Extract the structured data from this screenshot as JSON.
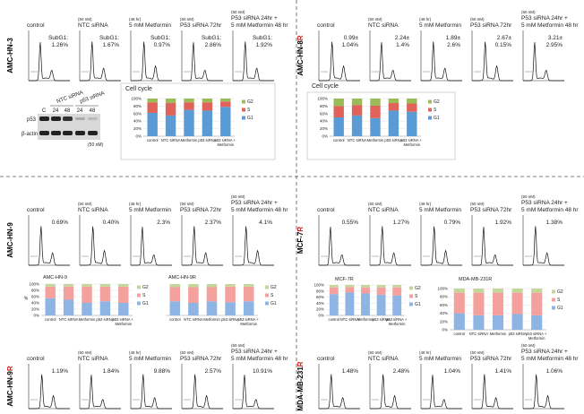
{
  "rows": [
    {
      "side_label": [
        {
          "text": "AMC-HN-3",
          "color": "#000000"
        }
      ],
      "headers": [
        {
          "lines": [
            "control"
          ]
        },
        {
          "note": "(50 nM)",
          "lines": [
            "NTC siRNA"
          ]
        },
        {
          "note": "(48 hr)",
          "lines": [
            "5 mM Metformin"
          ]
        },
        {
          "note": "(50 nM)",
          "lines": [
            "P53 siRNA 72hr"
          ]
        },
        {
          "note": "(50 nM)",
          "lines": [
            "P53 siRNA 24hr +",
            "5 mM Metformin 48 hr"
          ]
        }
      ],
      "labels": [
        [
          "SubG1:",
          "1.26%"
        ],
        [
          "SubG1:",
          "1.67%"
        ],
        [
          "SubG1:",
          "0.97%"
        ],
        [
          "SubG1:",
          "2.86%"
        ],
        [
          "SubG1:",
          "1.92%"
        ]
      ]
    },
    {
      "side_label": [
        {
          "text": "AMC-HN-8",
          "color": "#000000"
        },
        {
          "text": "R",
          "color": "#e0201b"
        }
      ],
      "headers": [
        {
          "lines": [
            "control"
          ]
        },
        {
          "note": "(50 nM)",
          "lines": [
            "NTC siRNA"
          ]
        },
        {
          "note": "(48 hr)",
          "lines": [
            "5 mM Metformin"
          ]
        },
        {
          "note": "(50 nM)",
          "lines": [
            "P53 siRNA 72hr"
          ]
        },
        {
          "note": "(50 nM)",
          "lines": [
            "P53 siRNA 24hr +",
            "5 mM Metformin 48 hr"
          ]
        }
      ],
      "labels": [
        [
          "0.99±",
          "1.04%"
        ],
        [
          "2.24±",
          "1.4%"
        ],
        [
          "1.89±",
          "2.6%"
        ],
        [
          "2.67±",
          "0.15%"
        ],
        [
          "3.21±",
          "2.95%"
        ]
      ]
    },
    {
      "side_label": [
        {
          "text": "AMC-HN-9",
          "color": "#000000"
        }
      ],
      "headers": [
        {
          "lines": [
            "control"
          ]
        },
        {
          "note": "(50 nM)",
          "lines": [
            "NTC siRNA"
          ]
        },
        {
          "note": "(48 hr)",
          "lines": [
            "5 mM Metformin"
          ]
        },
        {
          "note": "(50 nM)",
          "lines": [
            "P53 siRNA 72hr"
          ]
        },
        {
          "note": "(50 nM)",
          "lines": [
            "P53 siRNA 24hr +",
            "5 mM Metformin 48 hr"
          ]
        }
      ],
      "labels": [
        [
          "0.69%"
        ],
        [
          "0.40%"
        ],
        [
          "2.3%"
        ],
        [
          "2.37%"
        ],
        [
          "4.1%"
        ]
      ]
    },
    {
      "side_label": [
        {
          "text": "MCF-7",
          "color": "#000000"
        },
        {
          "text": "R",
          "color": "#e0201b"
        }
      ],
      "headers": [
        {
          "lines": [
            "control"
          ]
        },
        {
          "note": "(50 nM)",
          "lines": [
            "NTC siRNA"
          ]
        },
        {
          "note": "(48 hr)",
          "lines": [
            "5 mM Metformin"
          ]
        },
        {
          "note": "(50 nM)",
          "lines": [
            "P53 siRNA 72hr"
          ]
        },
        {
          "note": "(50 nM)",
          "lines": [
            "P53 siRNA 24hr +",
            "5 mM Metformin 48 hr"
          ]
        }
      ],
      "labels": [
        [
          "0.55%"
        ],
        [
          "1.27%"
        ],
        [
          "0.79%"
        ],
        [
          "1.92%"
        ],
        [
          "1.38%"
        ]
      ]
    },
    {
      "side_label": [
        {
          "text": "AMC-HN-9",
          "color": "#000000"
        },
        {
          "text": "R",
          "color": "#e0201b"
        }
      ],
      "headers": [
        {
          "lines": [
            "control"
          ]
        },
        {
          "note": "(50 nM)",
          "lines": [
            "NTC siRNA"
          ]
        },
        {
          "note": "(48 hr)",
          "lines": [
            "5 mM Metformin"
          ]
        },
        {
          "note": "(50 nM)",
          "lines": [
            "P53 siRNA 72hr"
          ]
        },
        {
          "note": "(50 nM)",
          "lines": [
            "P53 siRNA 24hr +",
            "5 mM Metformin 48 hr"
          ]
        }
      ],
      "labels": [
        [
          "1.19%"
        ],
        [
          "1.84%"
        ],
        [
          "9.88%"
        ],
        [
          "2.57%"
        ],
        [
          "10.91%"
        ]
      ]
    },
    {
      "side_label": [
        {
          "text": "MDA-MB-231",
          "color": "#000000"
        },
        {
          "text": "R",
          "color": "#e0201b"
        }
      ],
      "headers": [
        {
          "lines": [
            "control"
          ]
        },
        {
          "note": "(50 nM)",
          "lines": [
            "NTC siRNA"
          ]
        },
        {
          "note": "(48 hr)",
          "lines": [
            "5 mM Metformin"
          ]
        },
        {
          "note": "(50 nM)",
          "lines": [
            "P53 siRNA 72hr"
          ]
        },
        {
          "note": "(50 nM)",
          "lines": [
            "P53 siRNA 24hr +",
            "5 mM Metformin 48 hr"
          ]
        }
      ],
      "labels": [
        [
          "1.48%"
        ],
        [
          "2.48%"
        ],
        [
          "1.04%"
        ],
        [
          "1.41%"
        ],
        [
          "1.06%"
        ]
      ]
    }
  ],
  "western_blot": {
    "groups": [
      "NTC siRNA",
      "p53 siRNA"
    ],
    "lanes": [
      "C",
      "24",
      "48",
      "24",
      "48"
    ],
    "rows": [
      "p53",
      "β-actin"
    ],
    "note": "(50 nM)"
  },
  "chart_data": [
    {
      "type": "bar",
      "stacked": true,
      "title": "Cell cycle",
      "categories": [
        "control",
        "NTC siRNA",
        "Metformin",
        "p53 siRNA",
        "p53 siRNA + Metformin"
      ],
      "series": [
        {
          "name": "G1",
          "color": "#5b9bd5",
          "values": [
            62,
            55,
            70,
            68,
            78
          ]
        },
        {
          "name": "S",
          "color": "#e0625a",
          "values": [
            28,
            33,
            20,
            22,
            14
          ]
        },
        {
          "name": "G2",
          "color": "#9bbb59",
          "values": [
            10,
            12,
            10,
            10,
            8
          ]
        }
      ],
      "ylim": [
        0,
        100
      ],
      "yticks": [
        {
          "value": 0,
          "label": "0%"
        },
        {
          "value": 20,
          "label": "20%"
        },
        {
          "value": 40,
          "label": "40%"
        },
        {
          "value": 60,
          "label": "60%"
        },
        {
          "value": 80,
          "label": "80%"
        },
        {
          "value": 100,
          "label": "100%"
        }
      ],
      "grid": true,
      "legend": "right"
    },
    {
      "type": "bar",
      "stacked": true,
      "title": "Cell cycle",
      "categories": [
        "control",
        "NTC siRNA",
        "Metformin",
        "p53 siRNA",
        "p53 siRNA + Metformin"
      ],
      "series": [
        {
          "name": "G1",
          "color": "#5b9bd5",
          "values": [
            50,
            55,
            48,
            68,
            65
          ]
        },
        {
          "name": "S",
          "color": "#e0625a",
          "values": [
            30,
            28,
            33,
            20,
            22
          ]
        },
        {
          "name": "G2",
          "color": "#9bbb59",
          "values": [
            20,
            17,
            19,
            12,
            13
          ]
        }
      ],
      "ylim": [
        0,
        100
      ],
      "yticks": [
        {
          "value": 0,
          "label": "0%"
        },
        {
          "value": 20,
          "label": "20%"
        },
        {
          "value": 40,
          "label": "40%"
        },
        {
          "value": 60,
          "label": "60%"
        },
        {
          "value": 80,
          "label": "80%"
        },
        {
          "value": 100,
          "label": "100%"
        }
      ],
      "grid": true,
      "legend": "right"
    },
    {
      "type": "bar",
      "stacked": true,
      "title": "AMC-HN-9",
      "ylabel": "%",
      "categories": [
        "control",
        "NTC siRNA",
        "Metformin",
        "p53 siRNA",
        "p53 siRNA + Metformin"
      ],
      "series": [
        {
          "name": "G1",
          "color": "#8db4e2",
          "values": [
            55,
            50,
            40,
            45,
            40
          ]
        },
        {
          "name": "S",
          "color": "#f4a09c",
          "values": [
            37,
            42,
            52,
            47,
            52
          ]
        },
        {
          "name": "G2",
          "color": "#c4d79b",
          "values": [
            8,
            8,
            8,
            8,
            8
          ]
        }
      ],
      "ylim": [
        0,
        100
      ],
      "yticks": [
        {
          "value": 0,
          "label": "0%"
        },
        {
          "value": 20,
          "label": "20%"
        },
        {
          "value": 40,
          "label": "40%"
        },
        {
          "value": 60,
          "label": "60%"
        },
        {
          "value": 80,
          "label": "80%"
        },
        {
          "value": 100,
          "label": "100%"
        }
      ],
      "grid": true,
      "legend": "right"
    },
    {
      "type": "bar",
      "stacked": true,
      "title": "AMC-HN-9R",
      "categories": [
        "control",
        "NTC siRNA",
        "Metformin",
        "p53 siRNA",
        "p53 siRNA + Metformin"
      ],
      "series": [
        {
          "name": "G1",
          "color": "#8db4e2",
          "values": [
            45,
            40,
            45,
            42,
            45
          ]
        },
        {
          "name": "S",
          "color": "#f4a09c",
          "values": [
            45,
            50,
            45,
            50,
            47
          ]
        },
        {
          "name": "G2",
          "color": "#c4d79b",
          "values": [
            10,
            10,
            10,
            8,
            8
          ]
        }
      ],
      "ylim": [
        0,
        100
      ],
      "grid": false,
      "legend": "right"
    },
    {
      "type": "bar",
      "stacked": true,
      "title": "MCF-7R",
      "categories": [
        "control",
        "NTC siRNA",
        "Metformin",
        "p53 siRNA",
        "p53 siRNA + Metformin"
      ],
      "series": [
        {
          "name": "G1",
          "color": "#8db4e2",
          "values": [
            70,
            75,
            72,
            68,
            65
          ]
        },
        {
          "name": "S",
          "color": "#f4a09c",
          "values": [
            22,
            18,
            20,
            24,
            27
          ]
        },
        {
          "name": "G2",
          "color": "#c4d79b",
          "values": [
            8,
            7,
            8,
            8,
            8
          ]
        }
      ],
      "ylim": [
        0,
        100
      ],
      "yticks": [
        {
          "value": 0,
          "label": "0%"
        },
        {
          "value": 20,
          "label": "20%"
        },
        {
          "value": 40,
          "label": "40%"
        },
        {
          "value": 60,
          "label": "60%"
        },
        {
          "value": 80,
          "label": "80%"
        },
        {
          "value": 100,
          "label": "100%"
        }
      ],
      "grid": true,
      "legend": "right"
    },
    {
      "type": "bar",
      "stacked": true,
      "title": "MDA-MB-231R",
      "categories": [
        "control",
        "NTC siRNA",
        "Metformin",
        "p53 siRNA",
        "p53 siRNA + Metformin"
      ],
      "series": [
        {
          "name": "G1",
          "color": "#8db4e2",
          "values": [
            40,
            35,
            35,
            38,
            35
          ]
        },
        {
          "name": "S",
          "color": "#f4a09c",
          "values": [
            50,
            55,
            55,
            52,
            55
          ]
        },
        {
          "name": "G2",
          "color": "#c4d79b",
          "values": [
            10,
            10,
            10,
            10,
            10
          ]
        }
      ],
      "ylim": [
        0,
        100
      ],
      "yticks": [
        {
          "value": 0,
          "label": "0%"
        },
        {
          "value": 20,
          "label": "20%"
        },
        {
          "value": 40,
          "label": "40%"
        },
        {
          "value": 60,
          "label": "60%"
        },
        {
          "value": 80,
          "label": "80%"
        },
        {
          "value": 100,
          "label": "100%"
        }
      ],
      "grid": true,
      "legend": "right"
    }
  ]
}
